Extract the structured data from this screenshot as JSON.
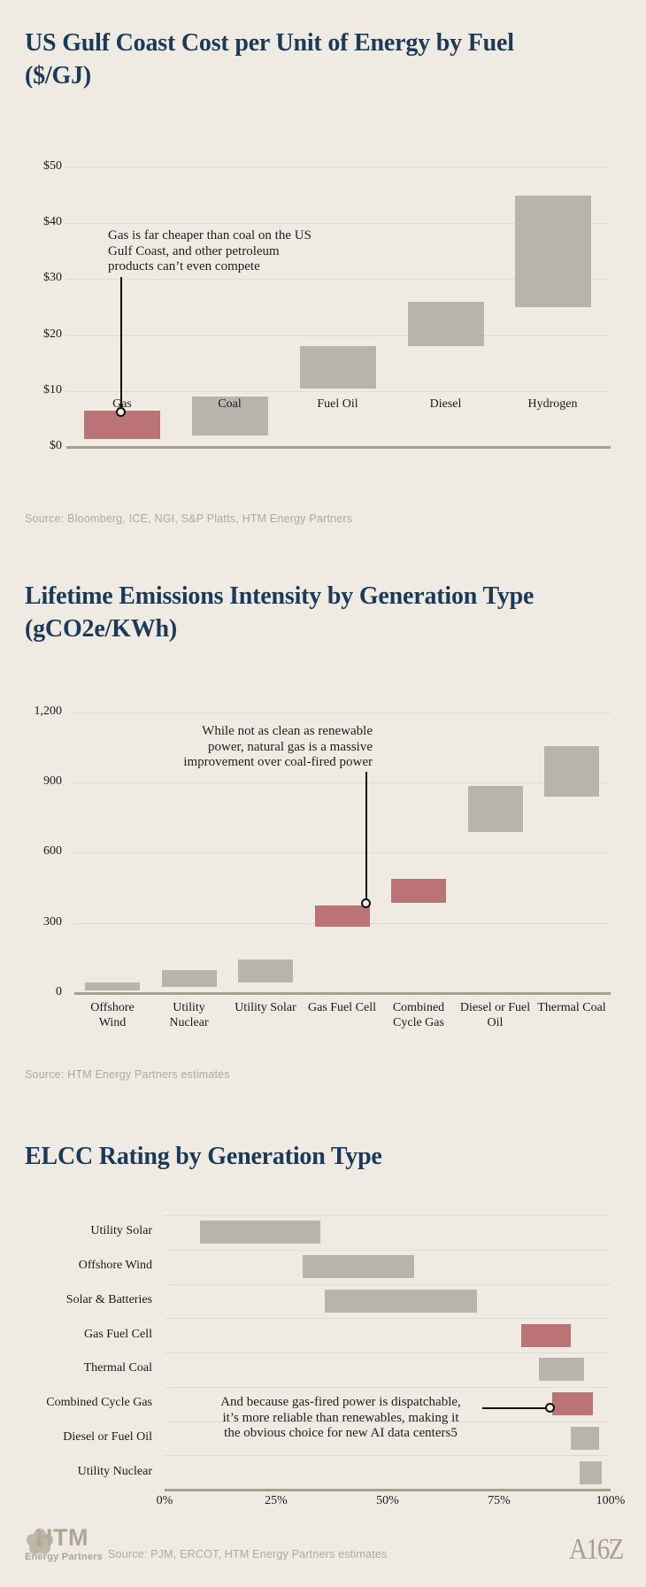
{
  "colors": {
    "background": "#efebe2",
    "title_navy": "#1b3a5a",
    "bar_gray": "#b7b4ae",
    "bar_red": "#bc7376",
    "axis_tan": "#a99f8d",
    "gridline": "#dfdbd1",
    "source_gray": "#b0a99b"
  },
  "chart_data": [
    {
      "type": "bar",
      "subtype": "floating-range-columns",
      "orientation": "vertical",
      "title": "US Gulf Coast Cost per Unit of Energy by Fuel ($/GJ)",
      "categories": [
        "Gas",
        "Coal",
        "Fuel Oil",
        "Diesel",
        "Hydrogen"
      ],
      "ranges": [
        [
          1.5,
          6.5
        ],
        [
          2,
          9
        ],
        [
          10.5,
          18
        ],
        [
          18,
          26
        ],
        [
          25,
          45
        ]
      ],
      "highlighted": [
        true,
        false,
        false,
        false,
        false
      ],
      "ylim": [
        0,
        50
      ],
      "grid_values": [
        0,
        10,
        20,
        30,
        40,
        50
      ],
      "ytick_labels": [
        "$0",
        "$10",
        "$20",
        "$30",
        "$40",
        "$50"
      ],
      "grid": true,
      "legend": "none",
      "annotation": {
        "lines": [
          "Gas is far cheaper than coal on the US",
          "Gulf Coast, and other petroleum",
          "products can’t even compete"
        ],
        "points_at": "Gas"
      },
      "source": "Source: Bloomberg, ICE, NGI, S&P Platts, HTM Energy Partners"
    },
    {
      "type": "bar",
      "subtype": "floating-range-columns",
      "orientation": "vertical",
      "title": "Lifetime Emissions Intensity by Generation Type (gCO2e/KWh)",
      "categories": [
        "Offshore Wind",
        "Utility Nuclear",
        "Utility Solar",
        "Gas Fuel Cell",
        "Combined Cycle Gas",
        "Diesel or Fuel Oil",
        "Thermal Coal"
      ],
      "ranges": [
        [
          10,
          45
        ],
        [
          25,
          100
        ],
        [
          45,
          145
        ],
        [
          285,
          375
        ],
        [
          385,
          490
        ],
        [
          690,
          885
        ],
        [
          840,
          1055
        ]
      ],
      "highlighted": [
        false,
        false,
        false,
        true,
        true,
        false,
        false
      ],
      "ylim": [
        0,
        1200
      ],
      "grid_values": [
        0,
        300,
        600,
        900,
        1200
      ],
      "ytick_labels": [
        "0",
        "300",
        "600",
        "900",
        "1,200"
      ],
      "grid": true,
      "legend": "none",
      "annotation": {
        "lines": [
          "While not as clean as renewable",
          "power, natural gas is a massive",
          "improvement over coal-fired power"
        ],
        "points_at": "Gas Fuel Cell"
      },
      "source": "Source: HTM Energy Partners estimates"
    },
    {
      "type": "bar",
      "subtype": "floating-range-bars",
      "orientation": "horizontal",
      "title": "ELCC Rating by Generation Type",
      "categories": [
        "Utility Solar",
        "Offshore Wind",
        "Solar & Batteries",
        "Gas Fuel Cell",
        "Thermal Coal",
        "Combined Cycle Gas",
        "Diesel or Fuel Oil",
        "Utility Nuclear"
      ],
      "ranges": [
        [
          8,
          35
        ],
        [
          31,
          56
        ],
        [
          36,
          70
        ],
        [
          80,
          91
        ],
        [
          84,
          94
        ],
        [
          87,
          96
        ],
        [
          91,
          97.5
        ],
        [
          93,
          98
        ]
      ],
      "highlighted": [
        false,
        false,
        false,
        true,
        false,
        true,
        false,
        false
      ],
      "xlim": [
        0,
        100
      ],
      "grid_values": [
        0,
        25,
        50,
        75,
        100
      ],
      "xtick_labels": [
        "0%",
        "25%",
        "50%",
        "75%",
        "100%"
      ],
      "grid": false,
      "legend": "none",
      "annotation": {
        "lines": [
          "And because gas-fired power is dispatchable,",
          "it’s more reliable than renewables, making it",
          "the obvious choice for new AI data centers5"
        ],
        "points_at": "Combined Cycle Gas"
      },
      "source": "Source: PJM, ERCOT, HTM Energy Partners estimates"
    }
  ],
  "footer": {
    "logo_left_line1": "HTM",
    "logo_left_line2": "Energy Partners",
    "source": "Source: PJM, ERCOT, HTM Energy Partners estimates",
    "logo_right": "A16Z"
  }
}
